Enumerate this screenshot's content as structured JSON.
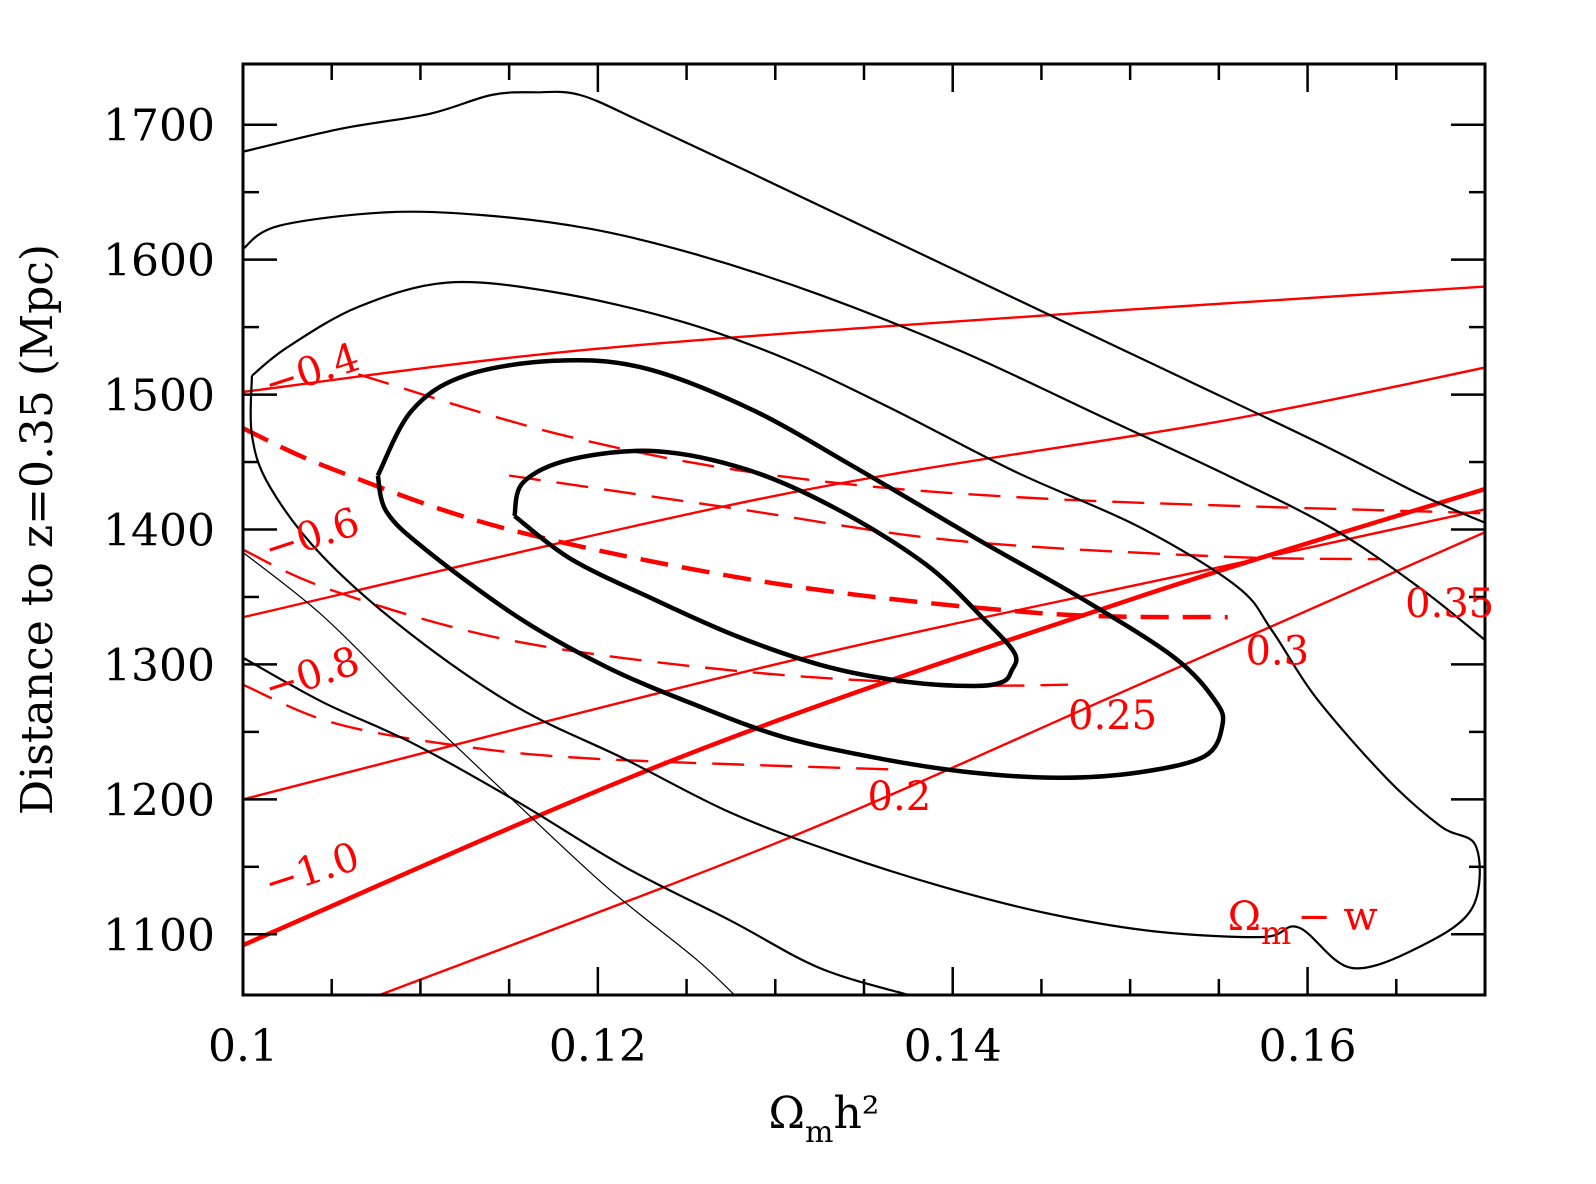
{
  "chart_data": {
    "type": "line",
    "title": "",
    "xlabel": "Ω_m h²",
    "ylabel": "Distance to z=0.35 (Mpc)",
    "xlim": [
      0.1,
      0.17
    ],
    "ylim": [
      1055,
      1745
    ],
    "x_ticks": [
      0.1,
      0.12,
      0.14,
      0.16
    ],
    "x_tick_labels": [
      "0.1",
      "0.12",
      "0.14",
      "0.16"
    ],
    "y_ticks": [
      1100,
      1200,
      1300,
      1400,
      1500,
      1600,
      1700
    ],
    "y_tick_labels": [
      "1100",
      "1200",
      "1300",
      "1400",
      "1500",
      "1600",
      "1700"
    ],
    "grid": false,
    "legend": "none",
    "colors": {
      "contours": "#000000",
      "model_lines": "#ff0000"
    },
    "contours": [
      {
        "name": "",
        "style": "thick",
        "points": [
          [
            0.1153,
            1410
          ],
          [
            0.1158,
            1435
          ],
          [
            0.1185,
            1452
          ],
          [
            0.1233,
            1458
          ],
          [
            0.1285,
            1444
          ],
          [
            0.1335,
            1415
          ],
          [
            0.1385,
            1374
          ],
          [
            0.1418,
            1333
          ],
          [
            0.1435,
            1308
          ],
          [
            0.1433,
            1295
          ],
          [
            0.1428,
            1287
          ],
          [
            0.1412,
            1284
          ],
          [
            0.1375,
            1287
          ],
          [
            0.133,
            1298
          ],
          [
            0.128,
            1320
          ],
          [
            0.1232,
            1348
          ],
          [
            0.1185,
            1378
          ],
          [
            0.1153,
            1410
          ]
        ]
      },
      {
        "name": "",
        "style": "thick",
        "points": [
          [
            0.1076,
            1440
          ],
          [
            0.1095,
            1488
          ],
          [
            0.1125,
            1514
          ],
          [
            0.1175,
            1525
          ],
          [
            0.1225,
            1520
          ],
          [
            0.1285,
            1490
          ],
          [
            0.1345,
            1446
          ],
          [
            0.1415,
            1392
          ],
          [
            0.1475,
            1347
          ],
          [
            0.1525,
            1305
          ],
          [
            0.1548,
            1273
          ],
          [
            0.1552,
            1255
          ],
          [
            0.1542,
            1232
          ],
          [
            0.1505,
            1220
          ],
          [
            0.146,
            1216
          ],
          [
            0.141,
            1220
          ],
          [
            0.136,
            1230
          ],
          [
            0.1305,
            1246
          ],
          [
            0.1255,
            1270
          ],
          [
            0.1205,
            1298
          ],
          [
            0.1155,
            1335
          ],
          [
            0.1103,
            1385
          ],
          [
            0.1081,
            1413
          ],
          [
            0.1076,
            1440
          ]
        ]
      },
      {
        "name": "",
        "style": "thin",
        "points": [
          [
            0.1005,
            1514
          ],
          [
            0.1025,
            1535
          ],
          [
            0.1065,
            1565
          ],
          [
            0.1115,
            1583
          ],
          [
            0.1175,
            1576
          ],
          [
            0.1245,
            1555
          ],
          [
            0.1305,
            1527
          ],
          [
            0.1365,
            1490
          ],
          [
            0.1435,
            1443
          ],
          [
            0.1505,
            1402
          ],
          [
            0.156,
            1358
          ],
          [
            0.158,
            1325
          ],
          [
            0.1605,
            1275
          ],
          [
            0.1645,
            1215
          ],
          [
            0.1675,
            1180
          ],
          [
            0.1695,
            1165
          ],
          [
            0.1693,
            1120
          ],
          [
            0.1665,
            1092
          ],
          [
            0.1625,
            1075
          ],
          [
            0.1595,
            1105
          ],
          [
            0.1575,
            1098
          ],
          [
            0.1515,
            1102
          ],
          [
            0.1455,
            1115
          ],
          [
            0.1395,
            1135
          ],
          [
            0.1335,
            1160
          ],
          [
            0.1275,
            1190
          ],
          [
            0.1215,
            1230
          ],
          [
            0.1155,
            1268
          ],
          [
            0.1095,
            1322
          ],
          [
            0.1045,
            1380
          ],
          [
            0.1015,
            1432
          ],
          [
            0.1005,
            1470
          ],
          [
            0.1005,
            1514
          ]
        ]
      },
      {
        "name": "",
        "style": "thin",
        "points": [
          [
            0.1,
            1608
          ],
          [
            0.102,
            1625
          ],
          [
            0.108,
            1635
          ],
          [
            0.1135,
            1633
          ],
          [
            0.1195,
            1623
          ],
          [
            0.1255,
            1604
          ],
          [
            0.1325,
            1574
          ],
          [
            0.1405,
            1532
          ],
          [
            0.1485,
            1483
          ],
          [
            0.1555,
            1440
          ],
          [
            0.1615,
            1400
          ],
          [
            0.1665,
            1355
          ],
          [
            0.17,
            1318
          ]
        ]
      },
      {
        "name": "",
        "style": "thin",
        "points": [
          [
            0.1,
            1305
          ],
          [
            0.1045,
            1272
          ],
          [
            0.1095,
            1242
          ],
          [
            0.1155,
            1198
          ],
          [
            0.1215,
            1150
          ],
          [
            0.1275,
            1110
          ],
          [
            0.1325,
            1075
          ],
          [
            0.1375,
            1055
          ]
        ]
      },
      {
        "name": "",
        "style": "thin",
        "points": [
          [
            0.1,
            1680
          ],
          [
            0.1055,
            1697
          ],
          [
            0.1105,
            1708
          ],
          [
            0.114,
            1722
          ],
          [
            0.1165,
            1724
          ],
          [
            0.119,
            1722
          ],
          [
            0.1225,
            1702
          ],
          [
            0.1285,
            1665
          ],
          [
            0.1365,
            1615
          ],
          [
            0.1445,
            1565
          ],
          [
            0.1525,
            1515
          ],
          [
            0.1605,
            1465
          ],
          [
            0.1665,
            1425
          ],
          [
            0.17,
            1405
          ]
        ]
      },
      {
        "name": "",
        "style": "hair",
        "points": [
          [
            0.1,
            1383
          ],
          [
            0.1045,
            1336
          ],
          [
            0.1095,
            1271
          ],
          [
            0.1155,
            1196
          ],
          [
            0.1205,
            1135
          ],
          [
            0.1255,
            1082
          ],
          [
            0.1277,
            1055
          ]
        ]
      }
    ],
    "red_solid_lines": [
      {
        "label": "0.2",
        "style": "thin",
        "points": [
          [
            0.1077,
            1055
          ],
          [
            0.1305,
            1170
          ],
          [
            0.1505,
            1285
          ],
          [
            0.17,
            1398
          ]
        ]
      },
      {
        "label": "0.25",
        "style": "thick",
        "points": [
          [
            0.1,
            1092
          ],
          [
            0.125,
            1233
          ],
          [
            0.15,
            1348
          ],
          [
            0.17,
            1430
          ]
        ]
      },
      {
        "label": "0.3",
        "style": "thin",
        "points": [
          [
            0.1,
            1200
          ],
          [
            0.13,
            1300
          ],
          [
            0.155,
            1372
          ],
          [
            0.17,
            1415
          ]
        ]
      },
      {
        "label": "0.35",
        "style": "thin",
        "points": [
          [
            0.1,
            1335
          ],
          [
            0.13,
            1425
          ],
          [
            0.155,
            1480
          ],
          [
            0.17,
            1520
          ]
        ]
      },
      {
        "label": "",
        "style": "thin",
        "points": [
          [
            0.1,
            1502
          ],
          [
            0.12,
            1534
          ],
          [
            0.15,
            1563
          ],
          [
            0.17,
            1580
          ]
        ]
      }
    ],
    "red_dashed_lines": [
      {
        "label": "-0.4",
        "style": "thin",
        "points": [
          [
            0.1065,
            1515
          ],
          [
            0.118,
            1470
          ],
          [
            0.13,
            1440
          ],
          [
            0.145,
            1423
          ],
          [
            0.17,
            1412
          ]
        ]
      },
      {
        "label": "-0.6",
        "style": "thin",
        "points": [
          [
            0.1,
            1385
          ],
          [
            0.105,
            1355
          ],
          [
            0.115,
            1318
          ],
          [
            0.128,
            1295
          ],
          [
            0.14,
            1285
          ],
          [
            0.1465,
            1285
          ]
        ]
      },
      {
        "label": "-0.8",
        "style": "thin",
        "points": [
          [
            0.1,
            1285
          ],
          [
            0.105,
            1257
          ],
          [
            0.112,
            1240
          ],
          [
            0.12,
            1230
          ],
          [
            0.137,
            1222
          ]
        ]
      },
      {
        "label": "",
        "style": "thick",
        "points": [
          [
            0.1,
            1475
          ],
          [
            0.105,
            1445
          ],
          [
            0.115,
            1400
          ],
          [
            0.13,
            1360
          ],
          [
            0.145,
            1338
          ],
          [
            0.1555,
            1335
          ]
        ]
      },
      {
        "label": "",
        "style": "thin",
        "points": [
          [
            0.115,
            1440
          ],
          [
            0.128,
            1415
          ],
          [
            0.14,
            1392
          ],
          [
            0.155,
            1380
          ],
          [
            0.164,
            1378
          ]
        ]
      }
    ],
    "annotations": [
      {
        "text": "-0.4"
      },
      {
        "text": "-0.6"
      },
      {
        "text": "-0.8"
      },
      {
        "text": "-1.0"
      },
      {
        "text": "0.2"
      },
      {
        "text": "0.25"
      },
      {
        "text": "0.3"
      },
      {
        "text": "0.35"
      }
    ],
    "corner_label": {
      "omega": "Ω",
      "sub": "m",
      "rest": "− w"
    }
  }
}
